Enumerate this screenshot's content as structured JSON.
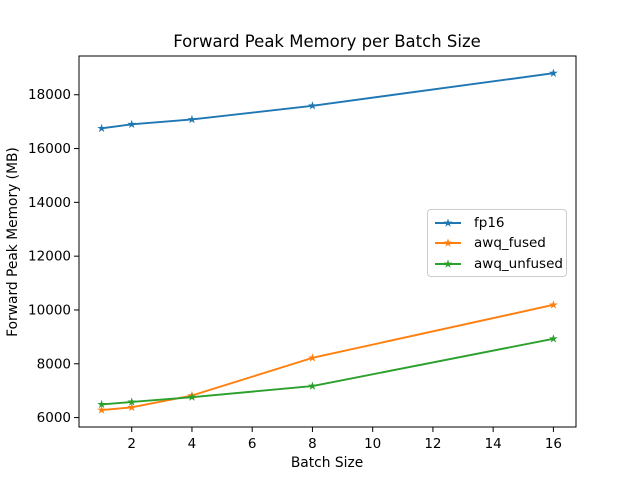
{
  "figure": {
    "background": "#ffffff"
  },
  "chart_data": {
    "type": "line",
    "title": "Forward Peak Memory per Batch Size",
    "xlabel": "Batch Size",
    "ylabel": "Forward Peak Memory (MB)",
    "x": [
      1,
      2,
      4,
      8,
      16
    ],
    "series": [
      {
        "name": "fp16",
        "color": "#1f77b4",
        "marker": "star",
        "values": [
          16750,
          16900,
          17080,
          17590,
          18800
        ]
      },
      {
        "name": "awq_fused",
        "color": "#ff7f0e",
        "marker": "star",
        "values": [
          6280,
          6380,
          6820,
          8220,
          10190
        ]
      },
      {
        "name": "awq_unfused",
        "color": "#2ca02c",
        "marker": "star",
        "values": [
          6490,
          6580,
          6760,
          7170,
          8930
        ]
      }
    ],
    "x_ticks": [
      2,
      4,
      6,
      8,
      10,
      12,
      14,
      16
    ],
    "y_ticks": [
      6000,
      8000,
      10000,
      12000,
      14000,
      16000,
      18000
    ],
    "xlim": [
      0.25,
      16.75
    ],
    "ylim": [
      5650,
      19440
    ],
    "grid": false,
    "legend": {
      "position": "center-right",
      "border_color": "#cccccc",
      "background": "rgba(255,255,255,0.8)"
    },
    "axis_color": "#000000",
    "text_color": "#000000"
  }
}
